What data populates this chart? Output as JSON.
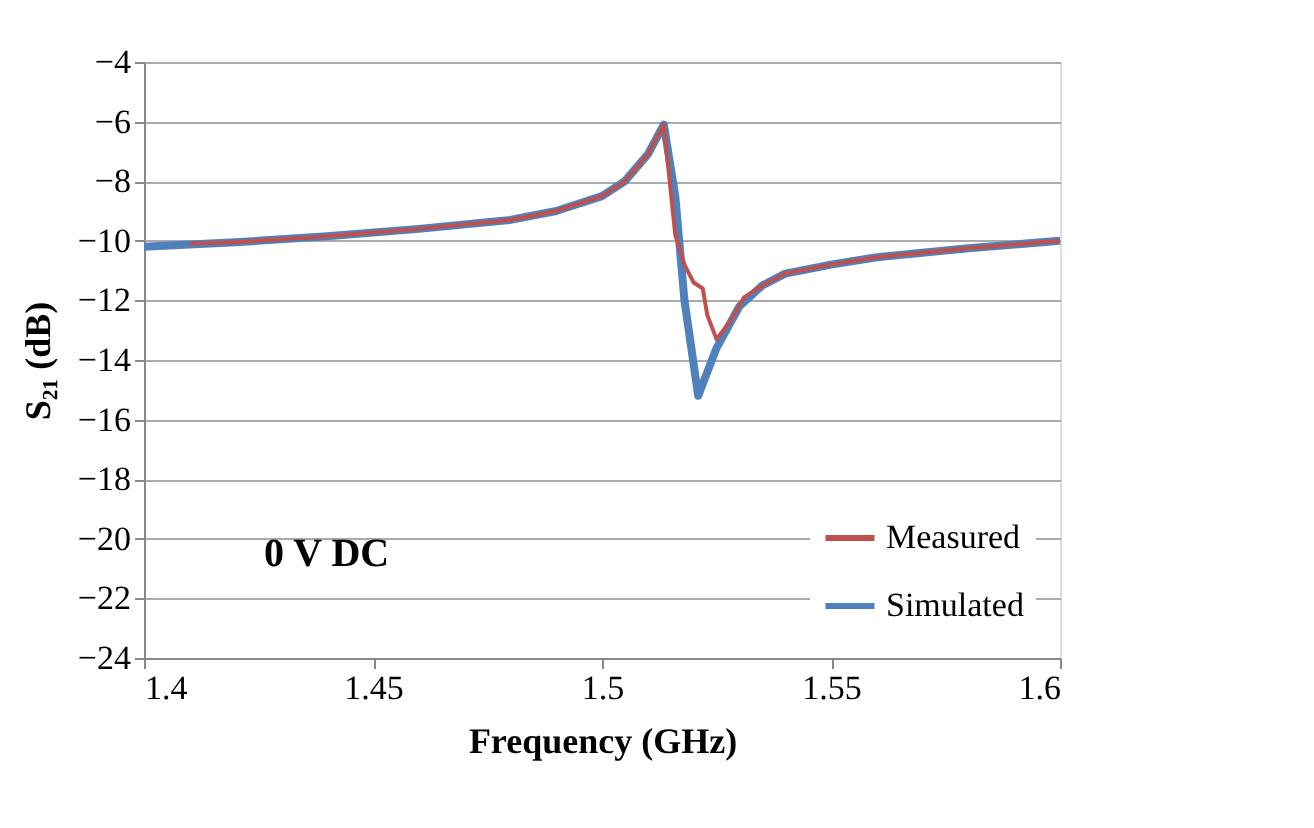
{
  "chart_data": {
    "type": "line",
    "xlabel": "Frequency (GHz)",
    "ylabel": "S₂₁ (dB)",
    "xlim": [
      1.4,
      1.6
    ],
    "xticks": [
      1.4,
      1.45,
      1.5,
      1.55,
      1.6
    ],
    "ylim": [
      -24,
      -4
    ],
    "yticks": [
      -24,
      -22,
      -20,
      -18,
      -16,
      -14,
      -12,
      -10,
      -8,
      -6,
      -4
    ],
    "grid": "y",
    "legend": "bottom right",
    "marker": "none",
    "line_style": "solid",
    "annotations": [
      "0 V DC"
    ],
    "series": [
      {
        "name": "Measured",
        "color": "#c0504d",
        "x": [
          1.41,
          1.42,
          1.44,
          1.46,
          1.48,
          1.49,
          1.5,
          1.505,
          1.51,
          1.5135,
          1.516,
          1.518,
          1.52,
          1.522,
          1.523,
          1.525,
          1.528,
          1.531,
          1.535,
          1.54,
          1.55,
          1.56,
          1.58,
          1.6
        ],
        "values": [
          -10.1,
          -10.05,
          -9.85,
          -9.6,
          -9.3,
          -9.0,
          -8.5,
          -8.0,
          -7.1,
          -6.1,
          -9.8,
          -10.8,
          -11.4,
          -11.6,
          -12.5,
          -13.3,
          -12.7,
          -11.9,
          -11.5,
          -11.1,
          -10.8,
          -10.55,
          -10.25,
          -10.0
        ]
      },
      {
        "name": "Simulated",
        "color": "#4f81bd",
        "x": [
          1.4,
          1.42,
          1.44,
          1.46,
          1.48,
          1.49,
          1.5,
          1.505,
          1.51,
          1.5135,
          1.516,
          1.518,
          1.521,
          1.525,
          1.53,
          1.535,
          1.54,
          1.55,
          1.56,
          1.58,
          1.6
        ],
        "values": [
          -10.2,
          -10.05,
          -9.85,
          -9.6,
          -9.3,
          -9.0,
          -8.5,
          -8.0,
          -7.1,
          -6.1,
          -8.5,
          -12.0,
          -15.2,
          -13.6,
          -12.2,
          -11.5,
          -11.1,
          -10.8,
          -10.55,
          -10.25,
          -10.0
        ]
      }
    ]
  }
}
